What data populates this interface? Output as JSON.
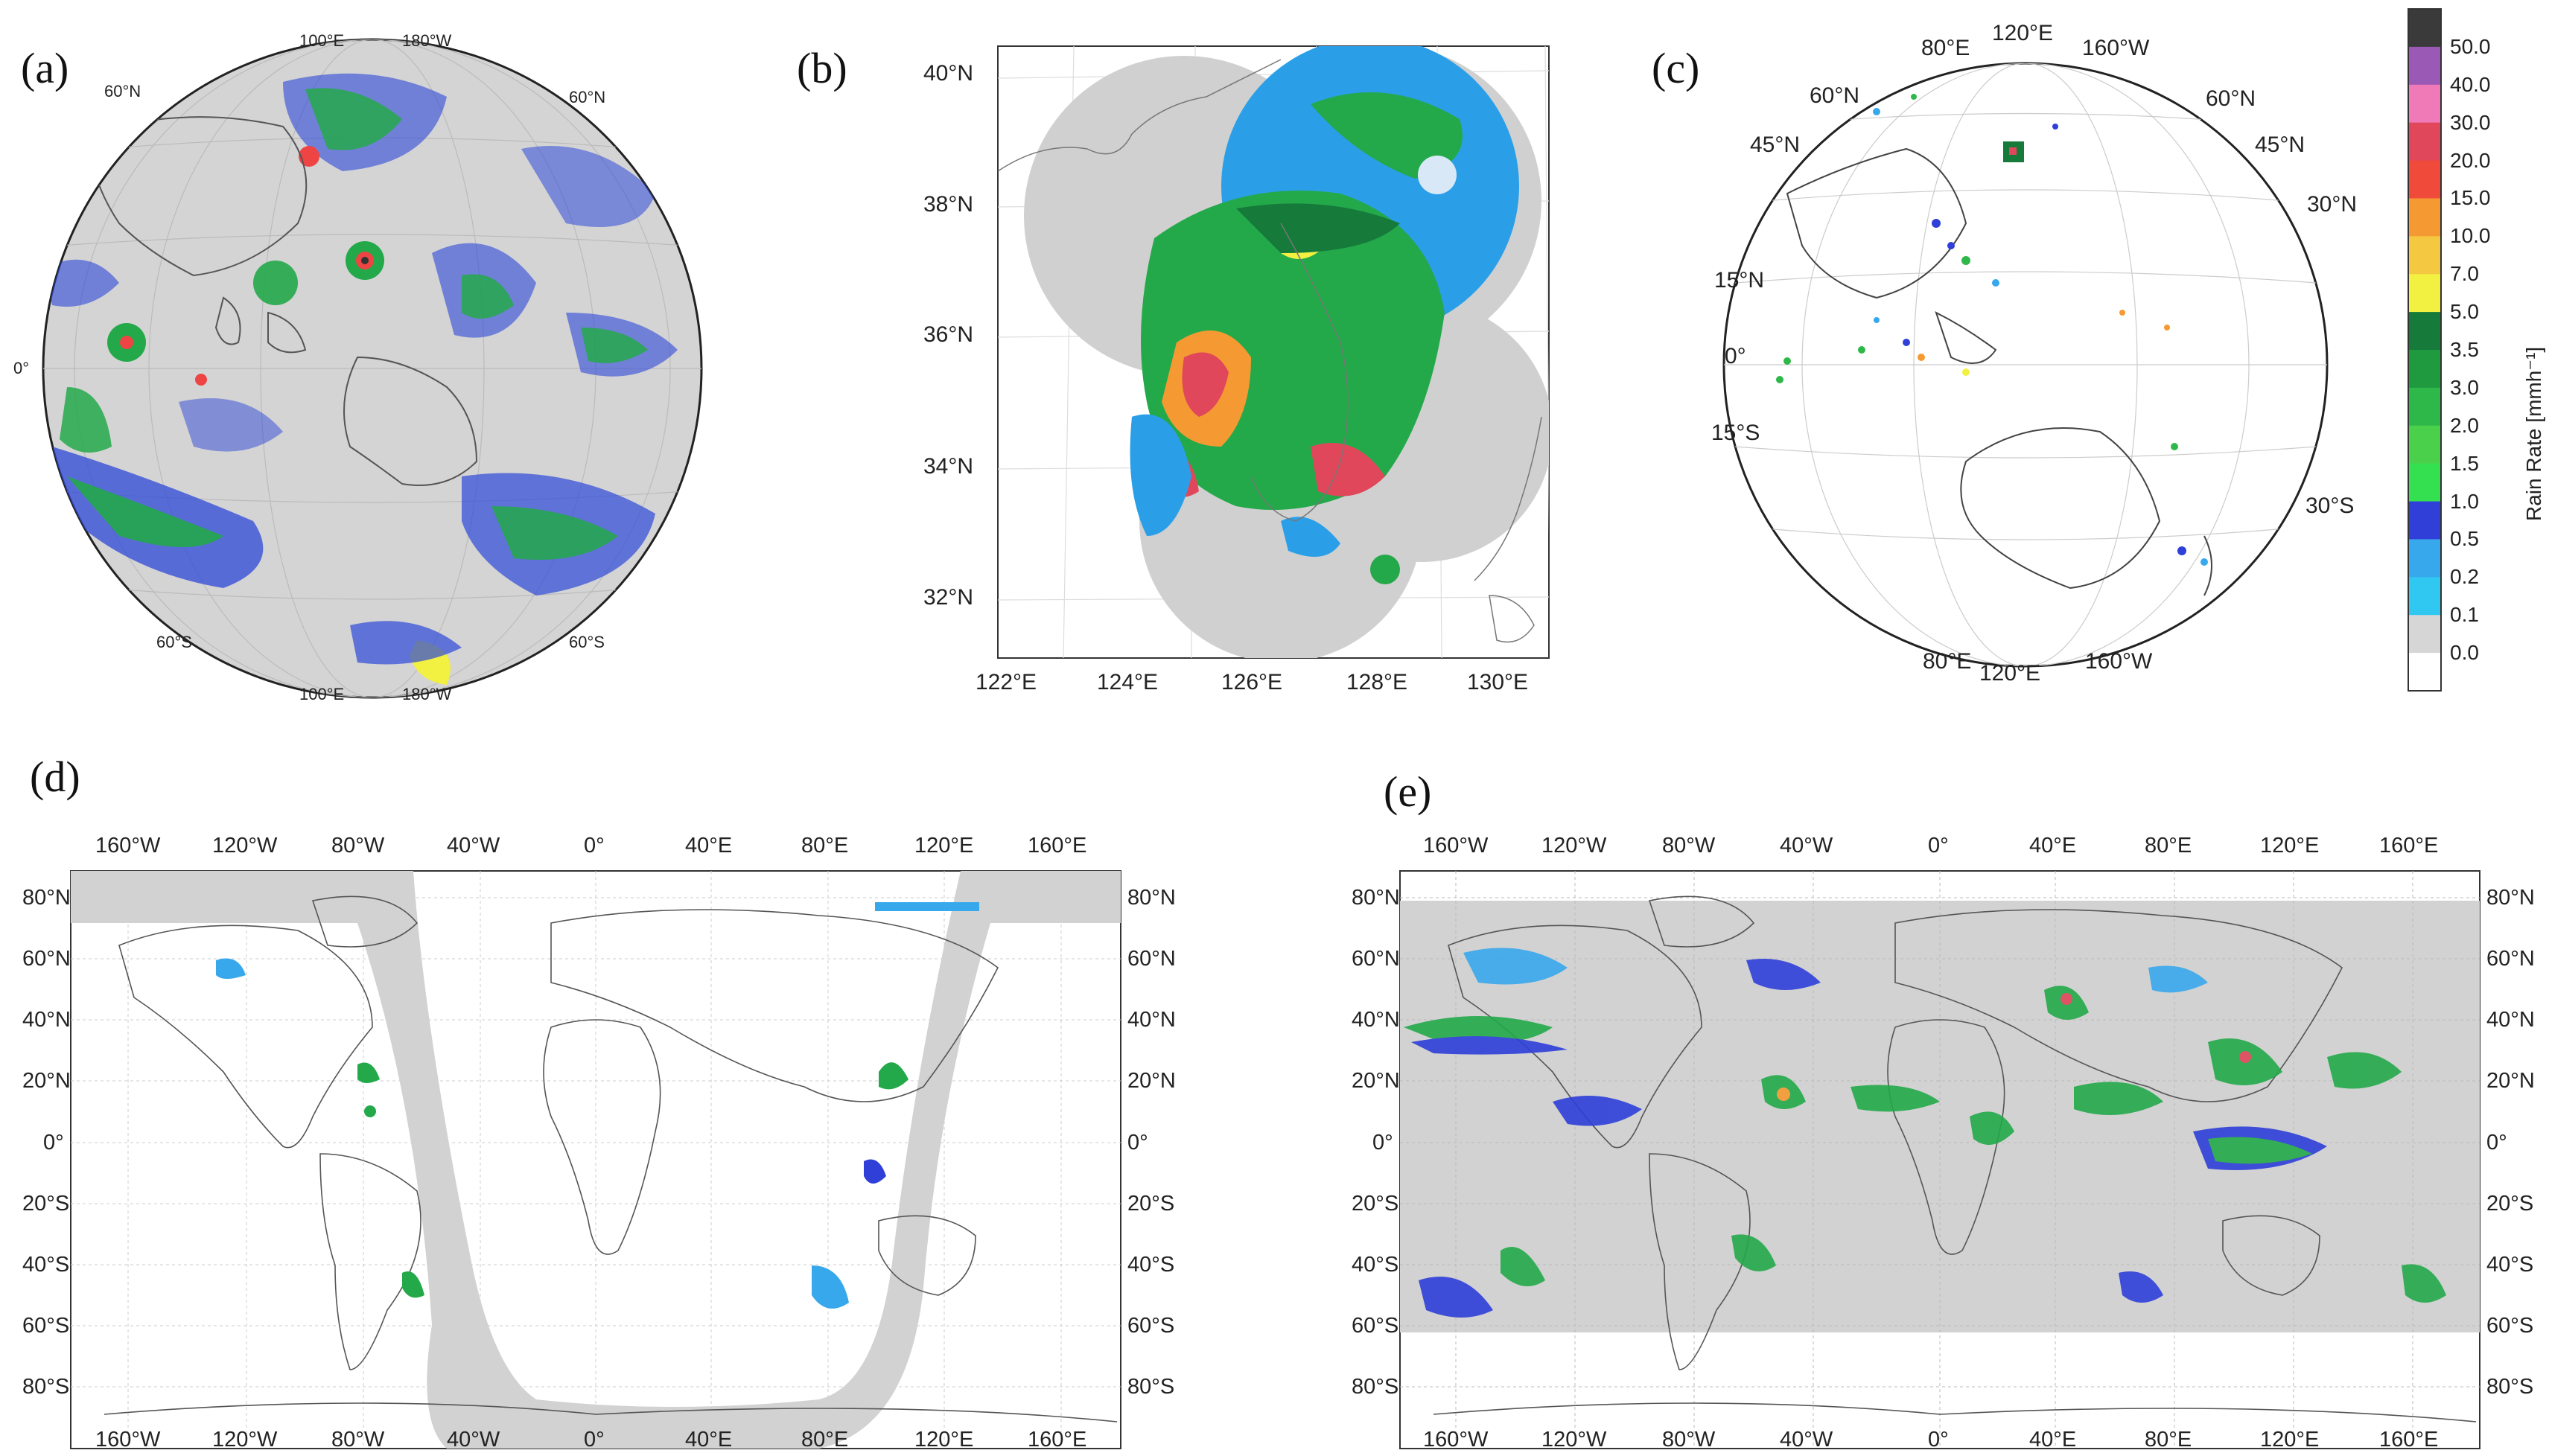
{
  "panel_labels": [
    "(a)",
    "(b)",
    "(c)",
    "(d)",
    "(e)"
  ],
  "panel_a": {
    "ticks": {
      "top_left_lon": "100°E",
      "top_right_lon": "180°W",
      "bottom_left_lon": "100°E",
      "bottom_right_lon": "180°W",
      "left_upper_lat": "60°N",
      "right_upper_lat": "60°N",
      "left_mid_lat": "0°",
      "left_lower_lat": "60°S",
      "right_lower_lat": "60°S"
    }
  },
  "panel_b": {
    "lat_ticks": [
      "40°N",
      "38°N",
      "36°N",
      "34°N",
      "32°N"
    ],
    "lon_ticks": [
      "122°E",
      "124°E",
      "126°E",
      "128°E",
      "130°E"
    ]
  },
  "panel_c": {
    "ticks": {
      "top_lon_1": "80°E",
      "top_lon_2": "120°E",
      "top_lon_3": "160°W",
      "bottom_lon_1": "80°E",
      "bottom_lon_2": "120°E",
      "bottom_lon_3": "160°W",
      "left_60n": "60°N",
      "left_45n": "45°N",
      "left_15n": "15°N",
      "left_0": "0°",
      "left_15s": "15°S",
      "right_60n": "60°N",
      "right_45n": "45°N",
      "right_30n": "30°N",
      "right_30s": "30°S"
    }
  },
  "world_maps": {
    "lon_ticks": [
      "160°W",
      "120°W",
      "80°W",
      "40°W",
      "0°",
      "40°E",
      "80°E",
      "120°E",
      "160°E"
    ],
    "lat_ticks": [
      "80°N",
      "60°N",
      "40°N",
      "20°N",
      "0°",
      "20°S",
      "40°S",
      "60°S",
      "80°S"
    ]
  },
  "colorbar": {
    "title": "Rain Rate [mmh⁻¹]",
    "levels": [
      "50.0",
      "40.0",
      "30.0",
      "20.0",
      "15.0",
      "10.0",
      "7.0",
      "5.0",
      "3.5",
      "3.0",
      "2.0",
      "1.5",
      "1.0",
      "0.5",
      "0.2",
      "0.1",
      "0.0"
    ],
    "colors": [
      "#3a3a3a",
      "#9b59b6",
      "#f07ab8",
      "#e0475a",
      "#f04a3a",
      "#f59a32",
      "#f5c842",
      "#f2f040",
      "#157a3a",
      "#1f9a3f",
      "#2fb84a",
      "#4bd04c",
      "#34e050",
      "#2f3fd8",
      "#38a8ec",
      "#30c8f0",
      "#d6d6d6",
      "#ffffff"
    ]
  }
}
